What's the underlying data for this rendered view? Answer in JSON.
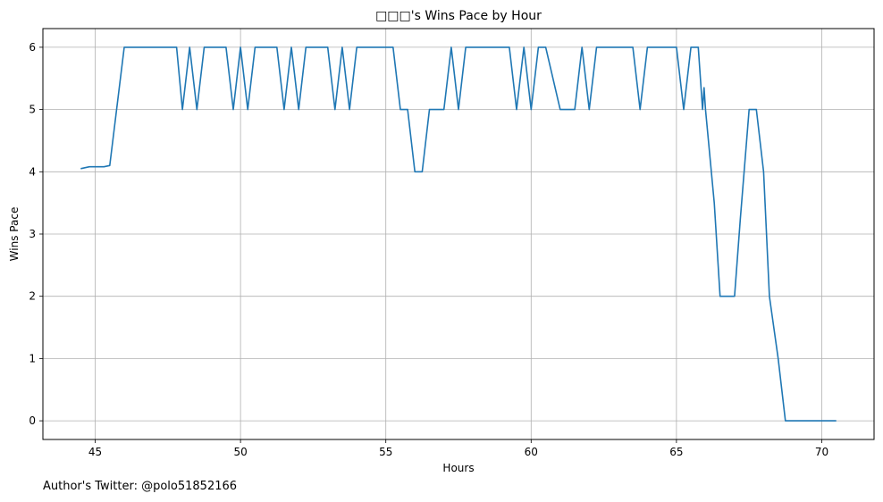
{
  "chart_data": {
    "type": "line",
    "title": "□□□'s Wins Pace by Hour",
    "xlabel": "Hours",
    "ylabel": "Wins Pace",
    "xlim": [
      43.2,
      71.8
    ],
    "ylim": [
      -0.3,
      6.3
    ],
    "xticks": [
      45,
      50,
      55,
      60,
      65,
      70
    ],
    "yticks": [
      0,
      1,
      2,
      3,
      4,
      5,
      6
    ],
    "grid": true,
    "series": [
      {
        "color": "#1f77b4",
        "x": [
          44.5,
          44.8,
          45.0,
          45.3,
          45.5,
          46.0,
          46.5,
          47.0,
          47.5,
          47.8,
          48.0,
          48.25,
          48.5,
          48.75,
          49.0,
          49.5,
          49.75,
          50.0,
          50.25,
          50.5,
          51.0,
          51.25,
          51.5,
          51.75,
          52.0,
          52.25,
          52.5,
          53.0,
          53.25,
          53.5,
          53.75,
          54.0,
          54.5,
          55.0,
          55.25,
          55.5,
          55.75,
          56.0,
          56.25,
          56.5,
          57.0,
          57.25,
          57.5,
          57.75,
          58.0,
          58.5,
          59.0,
          59.25,
          59.5,
          59.75,
          60.0,
          60.25,
          60.5,
          61.0,
          61.5,
          61.75,
          62.0,
          62.25,
          62.5,
          63.0,
          63.5,
          63.75,
          64.0,
          64.5,
          65.0,
          65.25,
          65.5,
          65.75,
          65.9,
          65.95,
          66.0,
          66.3,
          66.5,
          67.0,
          67.2,
          67.5,
          67.75,
          68.0,
          68.2,
          68.5,
          68.75,
          69.0,
          69.5,
          70.0,
          70.5
        ],
        "y": [
          4.05,
          4.08,
          4.08,
          4.08,
          4.1,
          6,
          6,
          6,
          6,
          6,
          5,
          6,
          5,
          6,
          6,
          6,
          5,
          6,
          5,
          6,
          6,
          6,
          5,
          6,
          5,
          6,
          6,
          6,
          5,
          6,
          5,
          6,
          6,
          6,
          6,
          5,
          5,
          4,
          4,
          5,
          5,
          6,
          5,
          6,
          6,
          6,
          6,
          6,
          5,
          6,
          5,
          6,
          6,
          5,
          5,
          6,
          5,
          6,
          6,
          6,
          6,
          5,
          6,
          6,
          6,
          5,
          6,
          6,
          5,
          5.35,
          5,
          3.5,
          2,
          2,
          3.25,
          5,
          5,
          4,
          2,
          1,
          0,
          0,
          0,
          0,
          0
        ]
      }
    ]
  },
  "footer": "Author's Twitter: @polo51852166"
}
